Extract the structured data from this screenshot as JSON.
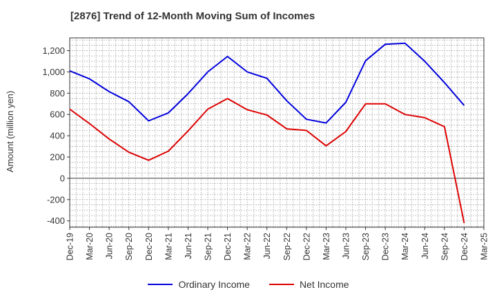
{
  "chart_data": {
    "type": "line",
    "title": "[2876]  Trend of 12-Month Moving Sum of Incomes",
    "ylabel": "Amount (million yen)",
    "xlabel": "",
    "ylim": [
      -460,
      1320
    ],
    "yticks": [
      -400,
      -200,
      0,
      200,
      400,
      600,
      800,
      1000,
      1200
    ],
    "ytick_labels": [
      "-400",
      "-200",
      "0",
      "200",
      "400",
      "600",
      "800",
      "1,000",
      "1,200"
    ],
    "categories": [
      "Dec-19",
      "Mar-20",
      "Jun-20",
      "Sep-20",
      "Dec-20",
      "Mar-21",
      "Jun-21",
      "Sep-21",
      "Dec-21",
      "Mar-22",
      "Jun-22",
      "Sep-22",
      "Dec-22",
      "Mar-23",
      "Jun-23",
      "Sep-23",
      "Dec-23",
      "Mar-24",
      "Jun-24",
      "Sep-24",
      "Dec-24",
      "Mar-25"
    ],
    "grid": true,
    "legend_position": "bottom",
    "series": [
      {
        "name": "Ordinary Income",
        "color": "#0000dd",
        "values": [
          1010,
          935,
          815,
          720,
          540,
          615,
          795,
          1000,
          1145,
          1000,
          940,
          730,
          555,
          520,
          715,
          1105,
          1260,
          1270,
          1100,
          900,
          685,
          null
        ]
      },
      {
        "name": "Net Income",
        "color": "#dd0000",
        "values": [
          650,
          515,
          370,
          245,
          170,
          255,
          445,
          650,
          750,
          645,
          595,
          465,
          450,
          305,
          440,
          700,
          700,
          600,
          570,
          485,
          -420,
          null
        ]
      }
    ]
  }
}
